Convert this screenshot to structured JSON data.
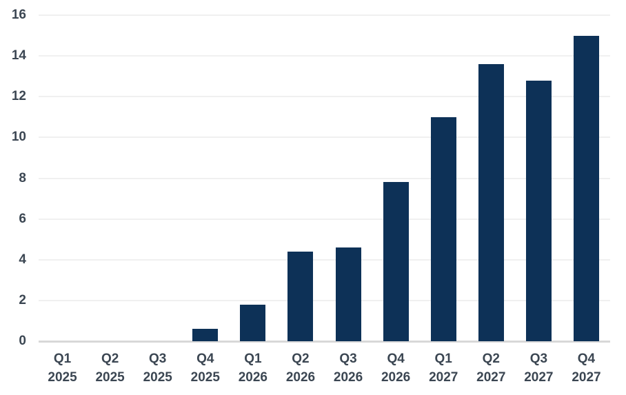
{
  "chart_data": {
    "type": "bar",
    "title": "",
    "xlabel": "",
    "ylabel": "",
    "categories": [
      "Q1 2025",
      "Q2 2025",
      "Q3 2025",
      "Q4 2025",
      "Q1 2026",
      "Q2 2026",
      "Q3 2026",
      "Q4 2026",
      "Q1 2027",
      "Q2 2027",
      "Q3 2027",
      "Q4 2027"
    ],
    "values": [
      0,
      0,
      0,
      0.6,
      1.8,
      4.4,
      4.6,
      7.8,
      11,
      13.6,
      12.8,
      15
    ],
    "ylim": [
      0,
      16
    ],
    "yticks": [
      0,
      2,
      4,
      6,
      8,
      10,
      12,
      14,
      16
    ],
    "grid": true,
    "legend_position": "none"
  },
  "colors": {
    "bar": "#0d3157",
    "axis_text": "#3b4652",
    "gridline": "#f0f0f0",
    "axis_line": "#d8d8d8",
    "background": "#ffffff"
  }
}
